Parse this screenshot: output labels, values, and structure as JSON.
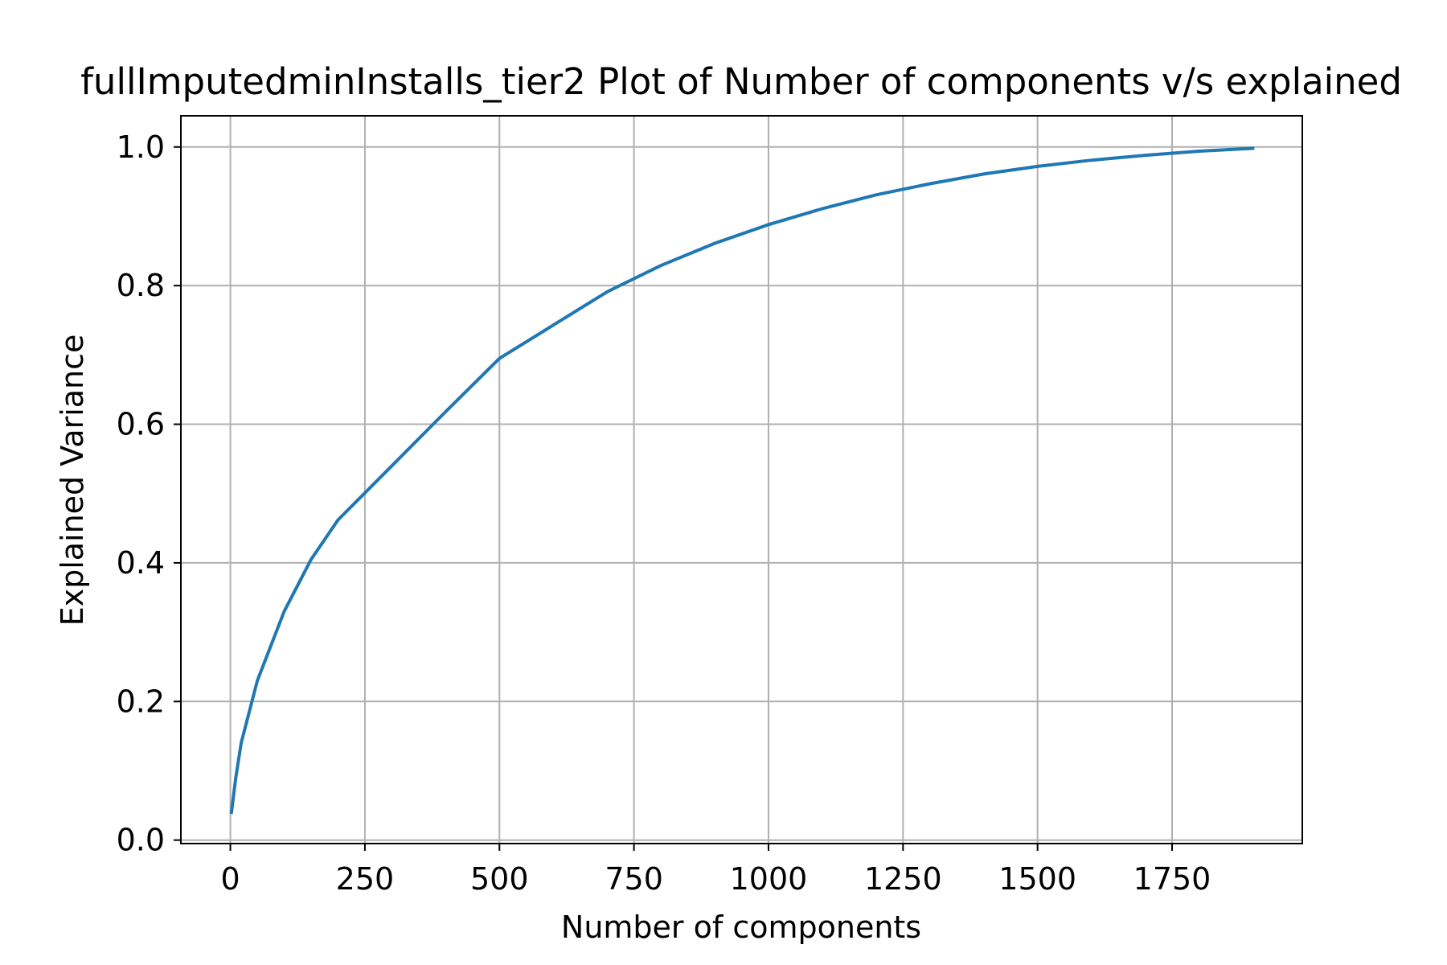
{
  "chart_data": {
    "type": "line",
    "title": "fullImputedminInstalls_tier2 Plot of Number of components v/s explained",
    "xlabel": "Number of components",
    "ylabel": "Explained Variance",
    "xlim": [
      -92,
      1992
    ],
    "ylim": [
      -0.005,
      1.045
    ],
    "xticks": [
      0,
      250,
      500,
      750,
      1000,
      1250,
      1500,
      1750
    ],
    "xtick_labels": [
      "0",
      "250",
      "500",
      "750",
      "1000",
      "1250",
      "1500",
      "1750"
    ],
    "yticks": [
      0.0,
      0.2,
      0.4,
      0.6,
      0.8,
      1.0
    ],
    "ytick_labels": [
      "0.0",
      "0.2",
      "0.4",
      "0.6",
      "0.8",
      "1.0"
    ],
    "grid": true,
    "series": [
      {
        "color": "#1f77b4",
        "x": [
          2,
          10,
          20,
          50,
          100,
          150,
          200,
          300,
          400,
          500,
          600,
          700,
          800,
          900,
          1000,
          1100,
          1200,
          1300,
          1400,
          1500,
          1600,
          1700,
          1800,
          1900
        ],
        "y": [
          0.04,
          0.09,
          0.14,
          0.23,
          0.33,
          0.405,
          0.462,
          0.54,
          0.618,
          0.695,
          0.743,
          0.791,
          0.829,
          0.861,
          0.888,
          0.911,
          0.931,
          0.947,
          0.961,
          0.972,
          0.981,
          0.988,
          0.994,
          0.998
        ]
      }
    ]
  }
}
